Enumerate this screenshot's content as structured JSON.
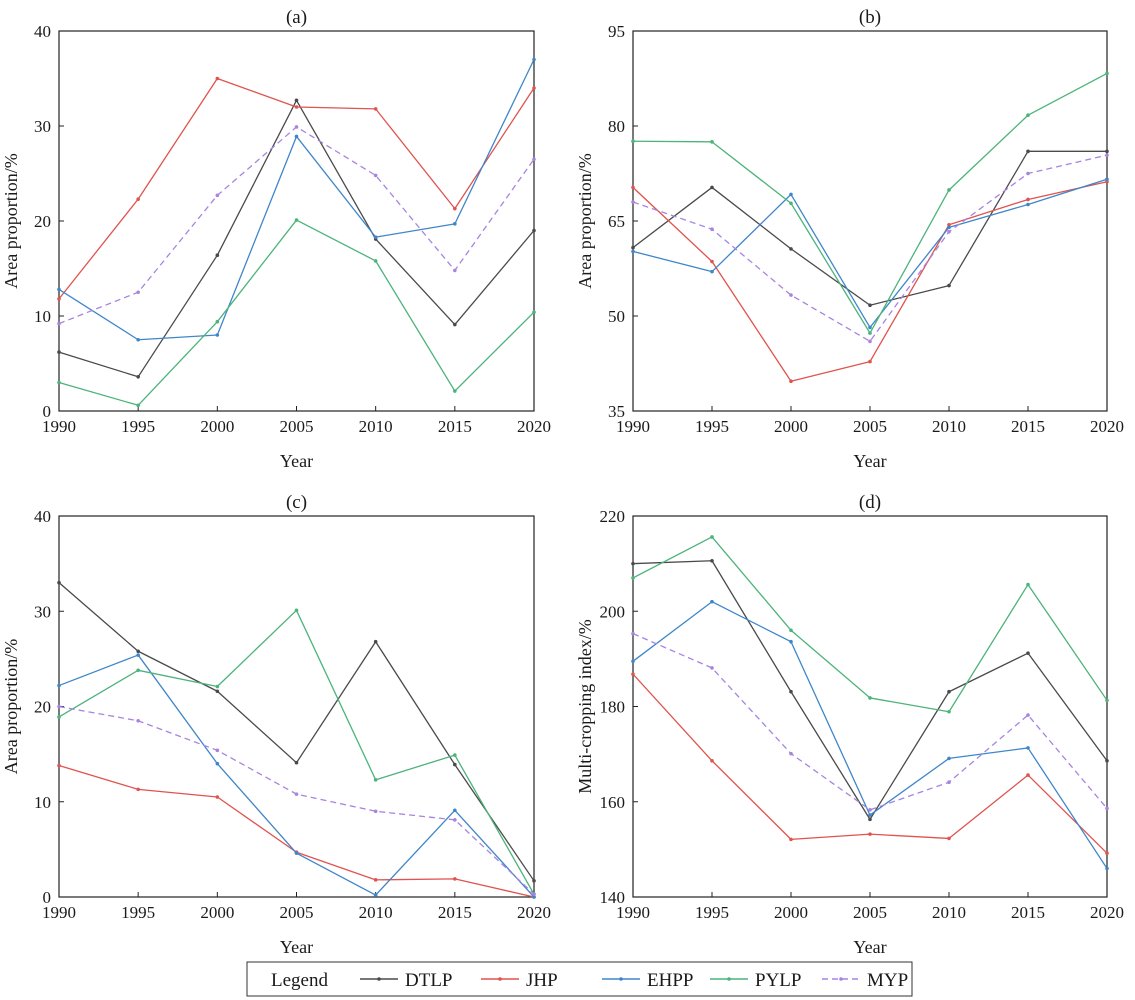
{
  "colors": {
    "DTLP": "#4a4a4a",
    "JHP": "#e0534e",
    "EHPP": "#3f86c9",
    "PYLP": "#4cb37b",
    "MYP": "#a784e0"
  },
  "legend": {
    "title": "Legend",
    "entries": [
      "DTLP",
      "JHP",
      "EHPP",
      "PYLP",
      "MYP"
    ]
  },
  "chart_data": [
    {
      "type": "line",
      "title": "(a)",
      "xlabel": "Year",
      "ylabel": "Area proportion/%",
      "x": [
        1990,
        1995,
        2000,
        2005,
        2010,
        2015,
        2020
      ],
      "xticks": [
        1990,
        1995,
        2000,
        2005,
        2010,
        2015,
        2020
      ],
      "yticks": [
        0,
        10,
        20,
        30,
        40
      ],
      "ylim": [
        0,
        40
      ],
      "series": [
        {
          "name": "DTLP",
          "values": [
            6.2,
            3.6,
            16.4,
            32.7,
            18.1,
            9.1,
            19.0
          ]
        },
        {
          "name": "JHP",
          "values": [
            11.8,
            22.3,
            35.0,
            32.0,
            31.8,
            21.3,
            34.0
          ]
        },
        {
          "name": "EHPP",
          "values": [
            12.8,
            7.5,
            8.0,
            28.9,
            18.3,
            19.7,
            37.0
          ]
        },
        {
          "name": "PYLP",
          "values": [
            3.0,
            0.6,
            9.4,
            20.1,
            15.8,
            2.1,
            10.4
          ]
        },
        {
          "name": "MYP",
          "values": [
            9.2,
            12.5,
            22.7,
            29.9,
            24.8,
            14.8,
            26.5
          ]
        }
      ]
    },
    {
      "type": "line",
      "title": "(b)",
      "xlabel": "Year",
      "ylabel": "Area proportion/%",
      "x": [
        1990,
        1995,
        2000,
        2005,
        2010,
        2015,
        2020
      ],
      "xticks": [
        1990,
        1995,
        2000,
        2005,
        2010,
        2015,
        2020
      ],
      "yticks": [
        35,
        50,
        65,
        80,
        95
      ],
      "ylim": [
        35,
        95
      ],
      "series": [
        {
          "name": "DTLP",
          "values": [
            60.8,
            70.3,
            60.6,
            51.7,
            54.8,
            76.0,
            76.0
          ]
        },
        {
          "name": "JHP",
          "values": [
            70.3,
            58.6,
            39.7,
            42.8,
            64.4,
            68.4,
            71.2
          ]
        },
        {
          "name": "EHPP",
          "values": [
            60.2,
            57.0,
            69.2,
            48.2,
            64.0,
            67.6,
            71.6
          ]
        },
        {
          "name": "PYLP",
          "values": [
            77.6,
            77.5,
            67.8,
            47.3,
            69.9,
            81.7,
            88.3
          ]
        },
        {
          "name": "MYP",
          "values": [
            68.0,
            63.7,
            53.3,
            46.0,
            63.3,
            72.5,
            75.4
          ]
        }
      ]
    },
    {
      "type": "line",
      "title": "(c)",
      "xlabel": "Year",
      "ylabel": "Area proportion/%",
      "x": [
        1990,
        1995,
        2000,
        2005,
        2010,
        2015,
        2020
      ],
      "xticks": [
        1990,
        1995,
        2000,
        2005,
        2010,
        2015,
        2020
      ],
      "yticks": [
        0,
        10,
        20,
        30,
        40
      ],
      "ylim": [
        0,
        40
      ],
      "series": [
        {
          "name": "DTLP",
          "values": [
            33.0,
            25.8,
            21.6,
            14.1,
            26.8,
            13.9,
            1.7
          ]
        },
        {
          "name": "JHP",
          "values": [
            13.8,
            11.3,
            10.5,
            4.7,
            1.8,
            1.9,
            0.0
          ]
        },
        {
          "name": "EHPP",
          "values": [
            22.2,
            25.4,
            14.0,
            4.6,
            0.2,
            9.1,
            0.0
          ]
        },
        {
          "name": "PYLP",
          "values": [
            18.9,
            23.8,
            22.1,
            30.1,
            12.3,
            14.9,
            0.3
          ]
        },
        {
          "name": "MYP",
          "values": [
            20.0,
            18.5,
            15.4,
            10.8,
            9.0,
            8.1,
            0.3
          ]
        }
      ]
    },
    {
      "type": "line",
      "title": "(d)",
      "xlabel": "Year",
      "ylabel": "Multi-cropping index/%",
      "x": [
        1990,
        1995,
        2000,
        2005,
        2010,
        2015,
        2020
      ],
      "xticks": [
        1990,
        1995,
        2000,
        2005,
        2010,
        2015,
        2020
      ],
      "yticks": [
        140,
        160,
        180,
        200,
        220
      ],
      "ylim": [
        140,
        220
      ],
      "series": [
        {
          "name": "DTLP",
          "values": [
            210.0,
            210.6,
            183.1,
            156.3,
            183.1,
            191.2,
            168.6
          ]
        },
        {
          "name": "JHP",
          "values": [
            186.8,
            168.6,
            152.1,
            153.2,
            152.3,
            165.6,
            149.2
          ]
        },
        {
          "name": "EHPP",
          "values": [
            189.5,
            202.0,
            193.6,
            157.2,
            169.1,
            171.3,
            146.0
          ]
        },
        {
          "name": "PYLP",
          "values": [
            207.0,
            215.6,
            196.0,
            181.8,
            178.9,
            205.6,
            181.3
          ]
        },
        {
          "name": "MYP",
          "values": [
            195.3,
            188.1,
            170.1,
            158.3,
            164.1,
            178.2,
            158.6
          ]
        }
      ]
    }
  ]
}
